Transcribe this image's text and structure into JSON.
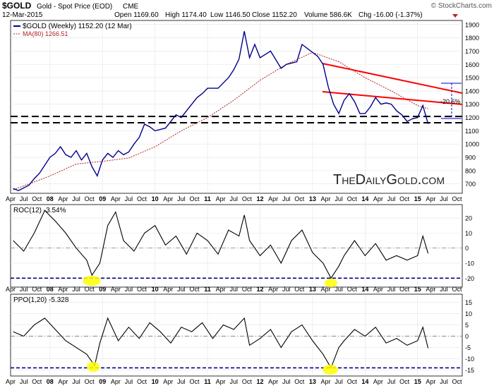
{
  "header": {
    "symbol": "$GOLD",
    "name": "Gold - Spot Price (EOD)",
    "exchange": "CME",
    "copyright": "© StockCharts.com",
    "date": "12-Mar-2015",
    "open": "Open 1169.60",
    "high": "High 1174.40",
    "low": "Low 1146.50",
    "close": "Close 1152.20",
    "volume": "Volume 586.6K",
    "chg": "Chg -16.00 (-1.37%)"
  },
  "watermark": "TheDailyGold.com",
  "colors": {
    "price_line": "#00008b",
    "ma_line": "#b22222",
    "trend_lines": "#ff0000",
    "support_lines": "#000000",
    "extreme_lines": "#00008b",
    "highlight": "#ffff00",
    "measure": "#0000cc"
  },
  "chart_data": [
    {
      "type": "line",
      "panel": "price",
      "legend": [
        "$GOLD (Weekly) 1152.20 (12 Mar)",
        "MA(80) 1266.51"
      ],
      "ylim": [
        640,
        1920
      ],
      "yticks": [
        "700",
        "800",
        "900",
        "1000",
        "1100",
        "1200",
        "1300",
        "1400",
        "1500",
        "1600",
        "1700",
        "1800",
        "1900"
      ],
      "series": [
        {
          "name": "$GOLD (Weekly)",
          "x": [
            2007.3,
            2007.4,
            2007.5,
            2007.6,
            2007.7,
            2007.8,
            2007.9,
            2008.0,
            2008.1,
            2008.2,
            2008.3,
            2008.4,
            2008.5,
            2008.6,
            2008.7,
            2008.8,
            2008.9,
            2009.0,
            2009.1,
            2009.2,
            2009.3,
            2009.4,
            2009.5,
            2009.6,
            2009.7,
            2009.8,
            2009.9,
            2010.0,
            2010.2,
            2010.4,
            2010.5,
            2010.6,
            2010.8,
            2010.9,
            2011.0,
            2011.2,
            2011.4,
            2011.5,
            2011.6,
            2011.7,
            2011.8,
            2011.9,
            2012.0,
            2012.2,
            2012.4,
            2012.5,
            2012.7,
            2012.8,
            2013.0,
            2013.1,
            2013.2,
            2013.3,
            2013.4,
            2013.5,
            2013.6,
            2013.7,
            2013.8,
            2013.9,
            2014.0,
            2014.1,
            2014.2,
            2014.3,
            2014.4,
            2014.5,
            2014.6,
            2014.7,
            2014.8,
            2014.9,
            2015.0,
            2015.1,
            2015.2
          ],
          "values": [
            665,
            650,
            670,
            690,
            740,
            780,
            840,
            900,
            930,
            980,
            920,
            900,
            950,
            880,
            930,
            830,
            760,
            880,
            930,
            900,
            950,
            920,
            940,
            1000,
            1050,
            1150,
            1130,
            1100,
            1120,
            1220,
            1200,
            1250,
            1350,
            1380,
            1420,
            1420,
            1500,
            1560,
            1640,
            1850,
            1650,
            1750,
            1650,
            1700,
            1570,
            1600,
            1620,
            1750,
            1690,
            1660,
            1600,
            1430,
            1300,
            1230,
            1330,
            1380,
            1320,
            1230,
            1230,
            1280,
            1350,
            1300,
            1310,
            1300,
            1250,
            1220,
            1170,
            1190,
            1200,
            1290,
            1152
          ]
        },
        {
          "name": "MA(80)",
          "x": [
            2007.3,
            2008.0,
            2008.5,
            2009.0,
            2009.5,
            2010.0,
            2010.5,
            2011.0,
            2011.5,
            2012.0,
            2012.5,
            2013.0,
            2013.5,
            2014.0,
            2014.5,
            2015.0,
            2015.2
          ],
          "values": [
            655,
            760,
            850,
            870,
            895,
            980,
            1100,
            1200,
            1330,
            1480,
            1600,
            1690,
            1620,
            1500,
            1400,
            1290,
            1266.51
          ]
        }
      ],
      "annotations": {
        "percent_label": "-20.6%"
      }
    },
    {
      "type": "line",
      "panel": "roc",
      "legend": "ROC(12) -3.54%",
      "ylim": [
        -25,
        28
      ],
      "yticks": [
        "-20",
        "-10",
        "0",
        "10",
        "20"
      ],
      "extreme_level": -20,
      "series": [
        {
          "name": "ROC(12)",
          "x": [
            2007.3,
            2007.5,
            2007.7,
            2007.9,
            2008.1,
            2008.3,
            2008.5,
            2008.7,
            2008.8,
            2008.95,
            2009.1,
            2009.25,
            2009.4,
            2009.6,
            2009.8,
            2010.0,
            2010.2,
            2010.4,
            2010.6,
            2010.8,
            2011.0,
            2011.2,
            2011.4,
            2011.6,
            2011.7,
            2011.8,
            2012.0,
            2012.2,
            2012.4,
            2012.6,
            2012.8,
            2013.0,
            2013.2,
            2013.35,
            2013.5,
            2013.6,
            2013.8,
            2014.0,
            2014.2,
            2014.4,
            2014.6,
            2014.8,
            2015.0,
            2015.1,
            2015.2
          ],
          "values": [
            5,
            -2,
            10,
            25,
            18,
            10,
            0,
            -8,
            -18,
            -10,
            15,
            24,
            5,
            -2,
            10,
            15,
            2,
            8,
            -4,
            10,
            5,
            -4,
            12,
            8,
            22,
            5,
            -5,
            2,
            -10,
            5,
            12,
            -3,
            -10,
            -20,
            -12,
            -5,
            5,
            -5,
            3,
            -8,
            -5,
            -8,
            -5,
            8,
            -3.54
          ]
        }
      ]
    },
    {
      "type": "line",
      "panel": "ppo",
      "legend": "PPO(1,20) -5.328",
      "ylim": [
        -17,
        18
      ],
      "yticks": [
        "-15",
        "-10",
        "-5",
        "0",
        "5",
        "10",
        "15"
      ],
      "extreme_level": -14,
      "series": [
        {
          "name": "PPO(1,20)",
          "x": [
            2007.3,
            2007.5,
            2007.7,
            2007.9,
            2008.1,
            2008.3,
            2008.5,
            2008.7,
            2008.85,
            2008.95,
            2009.1,
            2009.3,
            2009.5,
            2009.7,
            2009.9,
            2010.1,
            2010.3,
            2010.5,
            2010.7,
            2010.9,
            2011.1,
            2011.3,
            2011.5,
            2011.7,
            2011.8,
            2012.0,
            2012.2,
            2012.4,
            2012.6,
            2012.8,
            2013.0,
            2013.2,
            2013.35,
            2013.5,
            2013.6,
            2013.8,
            2014.0,
            2014.2,
            2014.4,
            2014.6,
            2014.8,
            2015.0,
            2015.1,
            2015.2
          ],
          "values": [
            2,
            0,
            5,
            8,
            3,
            -2,
            -5,
            -8,
            -13,
            -3,
            8,
            -2,
            4,
            -1,
            6,
            2,
            -3,
            4,
            2,
            6,
            -1,
            5,
            3,
            8,
            -4,
            -1,
            3,
            -5,
            2,
            5,
            -2,
            -8,
            -14,
            -5,
            -2,
            3,
            0,
            4,
            -3,
            -1,
            -4,
            -2,
            4,
            -5.328
          ]
        }
      ]
    }
  ],
  "x_axis": {
    "ticks": [
      "Apr",
      "Jul",
      "Oct",
      "08",
      "Apr",
      "Jul",
      "Oct",
      "09",
      "Apr",
      "Jul",
      "Oct",
      "10",
      "Apr",
      "Jul",
      "Oct",
      "11",
      "Apr",
      "Jul",
      "Oct",
      "12",
      "Apr",
      "Jul",
      "Oct",
      "13",
      "Apr",
      "Jul",
      "Oct",
      "14",
      "Apr",
      "Jul",
      "Oct",
      "15",
      "Apr",
      "Jul",
      "Oct"
    ],
    "years": [
      "08",
      "09",
      "10",
      "11",
      "12",
      "13",
      "14",
      "15"
    ]
  }
}
